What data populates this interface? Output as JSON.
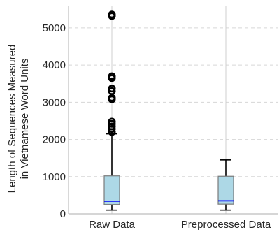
{
  "chart_data": {
    "type": "box",
    "ylabel_lines": [
      "Length of Sequences Measured",
      "in Vietnamese Word Units"
    ],
    "ylim": [
      0,
      5600
    ],
    "yticks": [
      0,
      1000,
      2000,
      3000,
      4000,
      5000
    ],
    "grid": "y-dashed",
    "categories": [
      "Raw Data",
      "Preprocessed Data"
    ],
    "series": [
      {
        "category": "Raw Data",
        "whisker_low": 100,
        "q1": 250,
        "median": 340,
        "q3": 1020,
        "whisker_high": 2150,
        "outliers": [
          2200,
          2280,
          2350,
          2420,
          2480,
          3080,
          3120,
          3300,
          3370,
          3650,
          3700,
          5320,
          5360
        ]
      },
      {
        "category": "Preprocessed Data",
        "whisker_low": 100,
        "q1": 260,
        "median": 350,
        "q3": 1010,
        "whisker_high": 1450,
        "outliers": []
      }
    ],
    "colors": {
      "box_fill": "#add8e6",
      "median": "#0000ff",
      "whisker": "#000000"
    }
  }
}
